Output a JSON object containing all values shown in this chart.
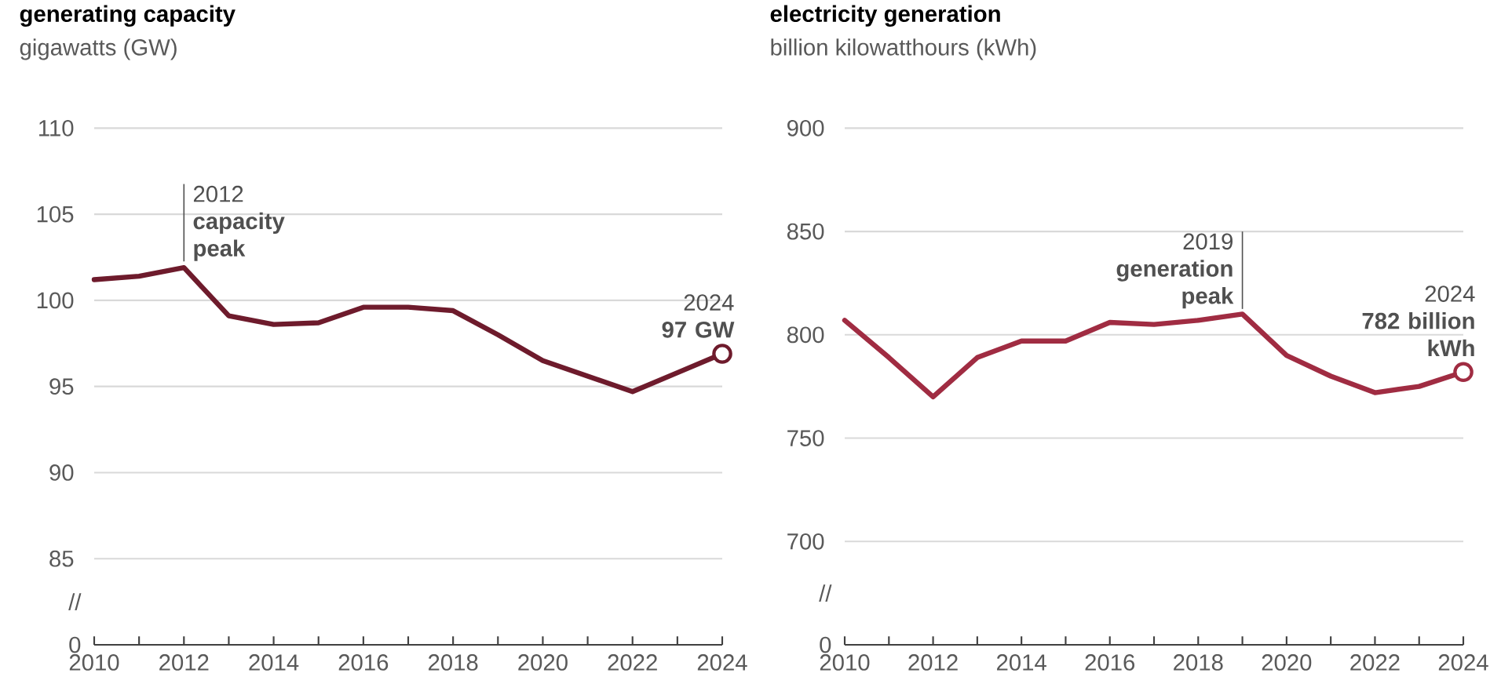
{
  "chart_data": [
    {
      "type": "line",
      "title": "generating capacity",
      "subtitle": "gigawatts (GW)",
      "x": [
        2010,
        2011,
        2012,
        2013,
        2014,
        2015,
        2016,
        2017,
        2018,
        2019,
        2020,
        2021,
        2022,
        2023,
        2024
      ],
      "series": [
        {
          "color": "#6e1b2c",
          "values": [
            101.2,
            101.4,
            101.9,
            99.1,
            98.6,
            98.7,
            99.6,
            99.6,
            99.4,
            98.0,
            96.5,
            95.6,
            94.7,
            95.8,
            96.9
          ]
        },
        {
          "type": "scatter",
          "color": "#6e1b2c",
          "x": [
            2024
          ],
          "values": [
            96.9
          ],
          "marker": "circle"
        }
      ],
      "xlim": [
        2010,
        2024
      ],
      "xticks": [
        2010,
        {
          "value": 2011,
          "label": null
        },
        2012,
        {
          "value": 2013,
          "label": null
        },
        2014,
        {
          "value": 2015,
          "label": null
        },
        2016,
        {
          "value": 2017,
          "label": null
        },
        2018,
        {
          "value": 2019,
          "label": null
        },
        2020,
        {
          "value": 2021,
          "label": null
        },
        2022,
        {
          "value": 2023,
          "label": null
        },
        2024
      ],
      "ylim": [
        80,
        110
      ],
      "yticks": [
        85,
        90,
        95,
        100,
        105,
        110
      ],
      "grid": "y",
      "line_style": "solid",
      "annotations": [
        {
          "text": "2012 **capacity peak**",
          "x": 2012,
          "y": 101.9
        },
        {
          "text": "2024 **97 GW**",
          "x": 2024,
          "y": 96.9
        },
        "//",
        "0"
      ]
    },
    {
      "type": "line",
      "title": "electricity generation",
      "subtitle": "billion kilowatthours (kWh)",
      "x": [
        2010,
        2011,
        2012,
        2013,
        2014,
        2015,
        2016,
        2017,
        2018,
        2019,
        2020,
        2021,
        2022,
        2023,
        2024
      ],
      "series": [
        {
          "color": "#a02c42",
          "values": [
            807,
            789,
            770,
            789,
            797,
            797,
            806,
            805,
            807,
            810,
            790,
            780,
            772,
            775,
            782
          ]
        },
        {
          "type": "scatter",
          "color": "#a02c42",
          "x": [
            2024
          ],
          "values": [
            782
          ],
          "marker": "circle"
        }
      ],
      "xlim": [
        2010,
        2024
      ],
      "xticks": [
        2010,
        {
          "value": 2011,
          "label": null
        },
        2012,
        {
          "value": 2013,
          "label": null
        },
        2014,
        {
          "value": 2015,
          "label": null
        },
        2016,
        {
          "value": 2017,
          "label": null
        },
        2018,
        {
          "value": 2019,
          "label": null
        },
        2020,
        {
          "value": 2021,
          "label": null
        },
        2022,
        {
          "value": 2023,
          "label": null
        },
        2024
      ],
      "ylim": [
        650,
        900
      ],
      "yticks": [
        700,
        750,
        800,
        850,
        900
      ],
      "grid": "y",
      "line_style": "solid",
      "annotations": [
        {
          "text": "2019 **generation peak**",
          "x": 2019,
          "y": 810
        },
        {
          "text": "2024 **782 billion kWh**",
          "x": 2024,
          "y": 782
        },
        "//",
        "0"
      ]
    }
  ]
}
